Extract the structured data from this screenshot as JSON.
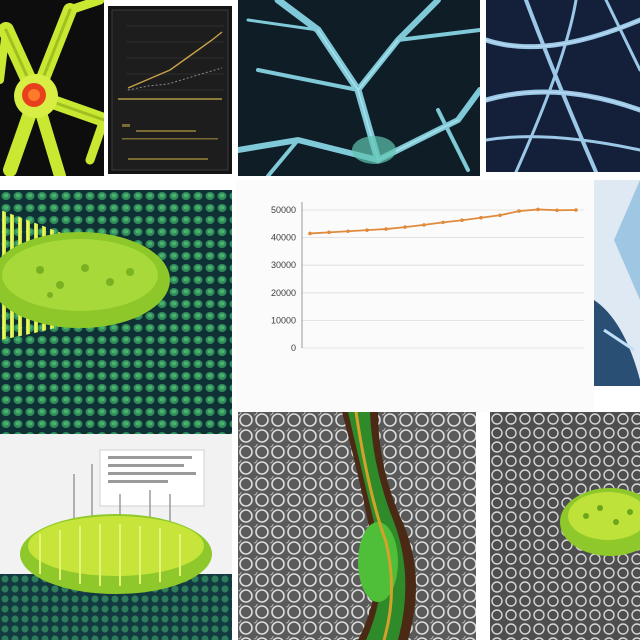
{
  "collage": {
    "chart": {
      "title": "",
      "xlabel": "",
      "ylabel": ""
    }
  },
  "chart_data": {
    "type": "line",
    "title": "",
    "xlabel": "",
    "ylabel": "",
    "x": [
      "",
      "",
      "",
      "",
      "",
      "",
      "",
      "",
      "",
      "",
      "",
      "",
      "",
      "",
      ""
    ],
    "series": [
      {
        "values": [
          41500,
          41900,
          42300,
          42700,
          43100,
          43800,
          44600,
          45500,
          46300,
          47200,
          48100,
          49600,
          50200,
          49900,
          50000
        ],
        "color": "#e08a3c"
      }
    ],
    "yticks": [
      0,
      10000,
      20000,
      30000,
      40000,
      50000
    ],
    "ylim": [
      0,
      50000
    ],
    "grid": true,
    "legend": "none",
    "colors": {
      "line": "#e08a3c",
      "grid": "#dcdcdc",
      "axis": "#999999"
    }
  }
}
